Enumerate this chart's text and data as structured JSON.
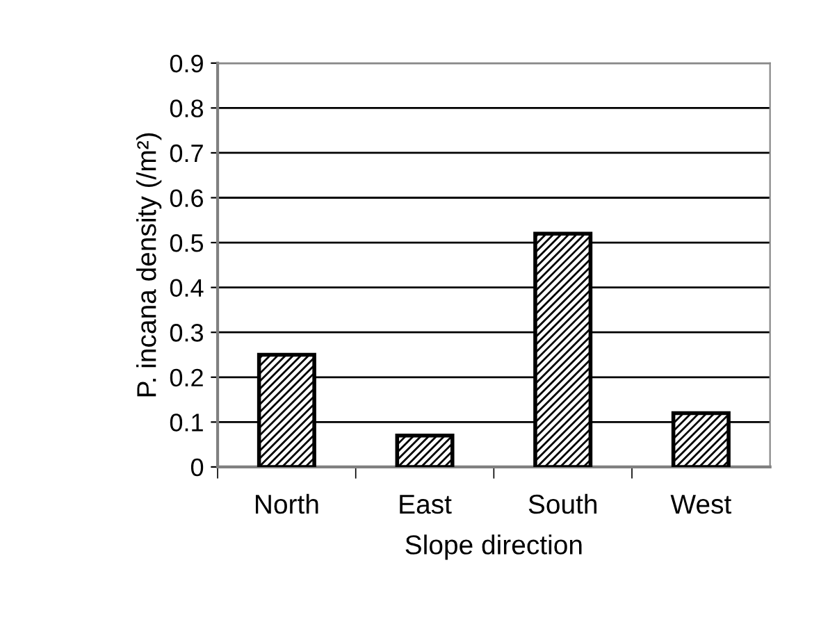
{
  "chart_data": {
    "type": "bar",
    "xlabel": "Slope direction",
    "ylabel": "P. incana density (/m²)",
    "categories": [
      "North",
      "East",
      "South",
      "West"
    ],
    "values": [
      0.25,
      0.07,
      0.52,
      0.12
    ],
    "color": "#000000",
    "ylim": [
      0,
      0.9
    ],
    "yticks": [
      0,
      0.1,
      0.2,
      0.3,
      0.4,
      0.5,
      0.6,
      0.7,
      0.8,
      0.9
    ],
    "grid": "y",
    "legend": false
  }
}
